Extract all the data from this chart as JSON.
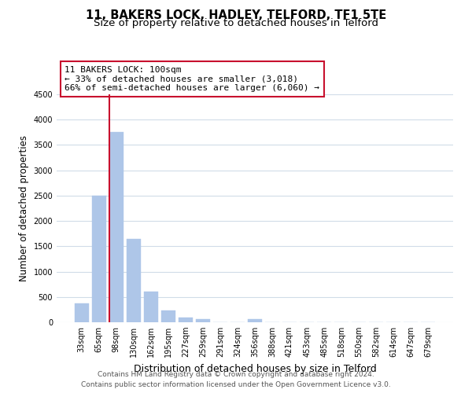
{
  "title": "11, BAKERS LOCK, HADLEY, TELFORD, TF1 5TE",
  "subtitle": "Size of property relative to detached houses in Telford",
  "xlabel": "Distribution of detached houses by size in Telford",
  "ylabel": "Number of detached properties",
  "categories": [
    "33sqm",
    "65sqm",
    "98sqm",
    "130sqm",
    "162sqm",
    "195sqm",
    "227sqm",
    "259sqm",
    "291sqm",
    "324sqm",
    "356sqm",
    "388sqm",
    "421sqm",
    "453sqm",
    "485sqm",
    "518sqm",
    "550sqm",
    "582sqm",
    "614sqm",
    "647sqm",
    "679sqm"
  ],
  "values": [
    380,
    2500,
    3750,
    1640,
    600,
    240,
    95,
    55,
    0,
    0,
    55,
    0,
    0,
    0,
    0,
    0,
    0,
    0,
    0,
    0,
    0
  ],
  "bar_color": "#aec6e8",
  "highlight_bar_index": 2,
  "highlight_color": "#c8102e",
  "annotation_line1": "11 BAKERS LOCK: 100sqm",
  "annotation_line2": "← 33% of detached houses are smaller (3,018)",
  "annotation_line3": "66% of semi-detached houses are larger (6,060) →",
  "annotation_box_color": "#ffffff",
  "annotation_box_edgecolor": "#c8102e",
  "ylim": [
    0,
    4500
  ],
  "yticks": [
    0,
    500,
    1000,
    1500,
    2000,
    2500,
    3000,
    3500,
    4000,
    4500
  ],
  "background_color": "#ffffff",
  "grid_color": "#d0dce8",
  "footer_line1": "Contains HM Land Registry data © Crown copyright and database right 2024.",
  "footer_line2": "Contains public sector information licensed under the Open Government Licence v3.0.",
  "title_fontsize": 10.5,
  "subtitle_fontsize": 9.5,
  "xlabel_fontsize": 9,
  "ylabel_fontsize": 8.5,
  "tick_fontsize": 7,
  "annotation_fontsize": 8,
  "footer_fontsize": 6.5
}
